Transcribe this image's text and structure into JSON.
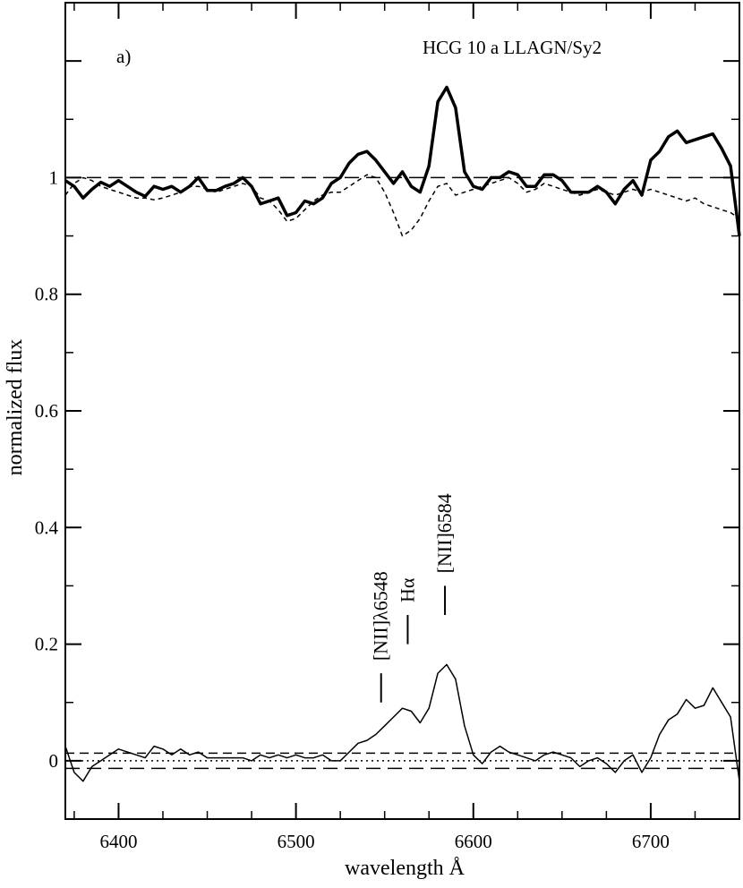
{
  "chart_data": {
    "type": "line",
    "panel_label": "a)",
    "title": "HCG 10 a LLAGN/Sy2",
    "xlabel": "wavelength Å",
    "ylabel": "normalized flux",
    "xlim": [
      6370,
      6750
    ],
    "ylim": [
      -0.1,
      1.3
    ],
    "x_ticks": [
      6400,
      6500,
      6600,
      6700
    ],
    "x_tick_labels": [
      "6400",
      "6500",
      "6600",
      "6700"
    ],
    "y_ticks": [
      0,
      0.2,
      0.4,
      0.6,
      0.8,
      1
    ],
    "y_tick_labels": [
      "0",
      "0.2",
      "0.4",
      "0.6",
      "0.8",
      "1"
    ],
    "grid": false,
    "series": [
      {
        "style": "thick-solid",
        "x": [
          6370,
          6375,
          6380,
          6385,
          6390,
          6395,
          6400,
          6405,
          6410,
          6415,
          6420,
          6425,
          6430,
          6435,
          6440,
          6445,
          6450,
          6455,
          6460,
          6465,
          6470,
          6475,
          6480,
          6485,
          6490,
          6495,
          6500,
          6505,
          6510,
          6515,
          6520,
          6525,
          6530,
          6535,
          6540,
          6545,
          6550,
          6555,
          6560,
          6565,
          6570,
          6575,
          6580,
          6585,
          6590,
          6595,
          6600,
          6605,
          6610,
          6615,
          6620,
          6625,
          6630,
          6635,
          6640,
          6645,
          6650,
          6655,
          6660,
          6665,
          6670,
          6675,
          6680,
          6685,
          6690,
          6695,
          6700,
          6705,
          6710,
          6715,
          6720,
          6725,
          6730,
          6735,
          6740,
          6745,
          6750
        ],
        "values": [
          0.995,
          0.985,
          0.965,
          0.98,
          0.992,
          0.985,
          0.995,
          0.985,
          0.975,
          0.968,
          0.985,
          0.98,
          0.985,
          0.975,
          0.985,
          1.0,
          0.978,
          0.978,
          0.985,
          0.99,
          1.0,
          0.985,
          0.955,
          0.96,
          0.965,
          0.935,
          0.94,
          0.96,
          0.955,
          0.965,
          0.99,
          1.0,
          1.025,
          1.04,
          1.045,
          1.03,
          1.01,
          0.99,
          1.01,
          0.985,
          0.975,
          1.02,
          1.13,
          1.155,
          1.12,
          1.01,
          0.985,
          0.98,
          1.0,
          1.0,
          1.01,
          1.005,
          0.985,
          0.985,
          1.005,
          1.005,
          0.995,
          0.975,
          0.975,
          0.975,
          0.985,
          0.975,
          0.955,
          0.98,
          0.995,
          0.97,
          1.03,
          1.045,
          1.07,
          1.08,
          1.06,
          1.065,
          1.07,
          1.075,
          1.05,
          1.02,
          0.9
        ]
      },
      {
        "style": "short-dashed",
        "x": [
          6370,
          6375,
          6380,
          6385,
          6390,
          6395,
          6400,
          6405,
          6410,
          6415,
          6420,
          6425,
          6430,
          6435,
          6440,
          6445,
          6450,
          6455,
          6460,
          6465,
          6470,
          6475,
          6480,
          6485,
          6490,
          6495,
          6500,
          6505,
          6510,
          6515,
          6520,
          6525,
          6530,
          6535,
          6540,
          6545,
          6550,
          6555,
          6560,
          6565,
          6570,
          6575,
          6580,
          6585,
          6590,
          6595,
          6600,
          6605,
          6610,
          6615,
          6620,
          6625,
          6630,
          6635,
          6640,
          6645,
          6650,
          6655,
          6660,
          6665,
          6670,
          6675,
          6680,
          6685,
          6690,
          6695,
          6700,
          6705,
          6710,
          6715,
          6720,
          6725,
          6730,
          6735,
          6740,
          6745,
          6750
        ],
        "values": [
          0.97,
          0.99,
          1.0,
          0.995,
          0.985,
          0.98,
          0.975,
          0.97,
          0.965,
          0.965,
          0.962,
          0.965,
          0.97,
          0.975,
          0.985,
          0.985,
          0.98,
          0.975,
          0.98,
          0.985,
          0.99,
          0.985,
          0.965,
          0.96,
          0.945,
          0.925,
          0.93,
          0.945,
          0.96,
          0.97,
          0.975,
          0.975,
          0.985,
          0.995,
          1.005,
          1.0,
          0.975,
          0.94,
          0.9,
          0.91,
          0.93,
          0.96,
          0.985,
          0.99,
          0.97,
          0.975,
          0.98,
          0.985,
          0.99,
          0.995,
          1.0,
          0.99,
          0.975,
          0.98,
          0.99,
          0.985,
          0.98,
          0.975,
          0.97,
          0.975,
          0.98,
          0.975,
          0.97,
          0.975,
          0.98,
          0.975,
          0.98,
          0.975,
          0.97,
          0.965,
          0.96,
          0.965,
          0.955,
          0.95,
          0.945,
          0.94,
          0.93
        ]
      },
      {
        "style": "thin-solid",
        "x": [
          6370,
          6375,
          6380,
          6385,
          6390,
          6395,
          6400,
          6405,
          6410,
          6415,
          6420,
          6425,
          6430,
          6435,
          6440,
          6445,
          6450,
          6455,
          6460,
          6465,
          6470,
          6475,
          6480,
          6485,
          6490,
          6495,
          6500,
          6505,
          6510,
          6515,
          6520,
          6525,
          6530,
          6535,
          6540,
          6545,
          6550,
          6555,
          6560,
          6565,
          6570,
          6575,
          6580,
          6585,
          6590,
          6595,
          6600,
          6605,
          6610,
          6615,
          6620,
          6625,
          6630,
          6635,
          6640,
          6645,
          6650,
          6655,
          6660,
          6665,
          6670,
          6675,
          6680,
          6685,
          6690,
          6695,
          6700,
          6705,
          6710,
          6715,
          6720,
          6725,
          6730,
          6735,
          6740,
          6745,
          6750
        ],
        "values": [
          0.025,
          -0.02,
          -0.035,
          -0.01,
          0.0,
          0.01,
          0.02,
          0.015,
          0.01,
          0.005,
          0.025,
          0.02,
          0.01,
          0.02,
          0.01,
          0.015,
          0.005,
          0.005,
          0.005,
          0.005,
          0.005,
          0.0,
          0.01,
          0.005,
          0.01,
          0.005,
          0.01,
          0.005,
          0.005,
          0.01,
          0.0,
          0.0,
          0.015,
          0.03,
          0.035,
          0.045,
          0.06,
          0.075,
          0.09,
          0.085,
          0.065,
          0.09,
          0.15,
          0.165,
          0.14,
          0.06,
          0.01,
          -0.005,
          0.015,
          0.025,
          0.015,
          0.01,
          0.005,
          0.0,
          0.01,
          0.015,
          0.01,
          0.005,
          -0.01,
          0.0,
          0.005,
          -0.005,
          -0.02,
          0.0,
          0.01,
          -0.02,
          0.005,
          0.045,
          0.07,
          0.08,
          0.105,
          0.09,
          0.095,
          0.125,
          0.1,
          0.075,
          -0.035
        ]
      }
    ],
    "reference_lines": [
      {
        "y": 1.0,
        "style": "long-dashed"
      },
      {
        "y": 0.013,
        "style": "dashed"
      },
      {
        "y": 0.0,
        "style": "dotted"
      },
      {
        "y": -0.013,
        "style": "long-dashed"
      }
    ],
    "line_markers": [
      {
        "label": "[NII]λ6548",
        "x": 6548,
        "y_bottom": 0.1,
        "y_top": 0.15
      },
      {
        "label": "Hα",
        "x": 6563,
        "y_bottom": 0.2,
        "y_top": 0.25
      },
      {
        "label": "[NII]6584",
        "x": 6584,
        "y_bottom": 0.25,
        "y_top": 0.3
      }
    ]
  }
}
